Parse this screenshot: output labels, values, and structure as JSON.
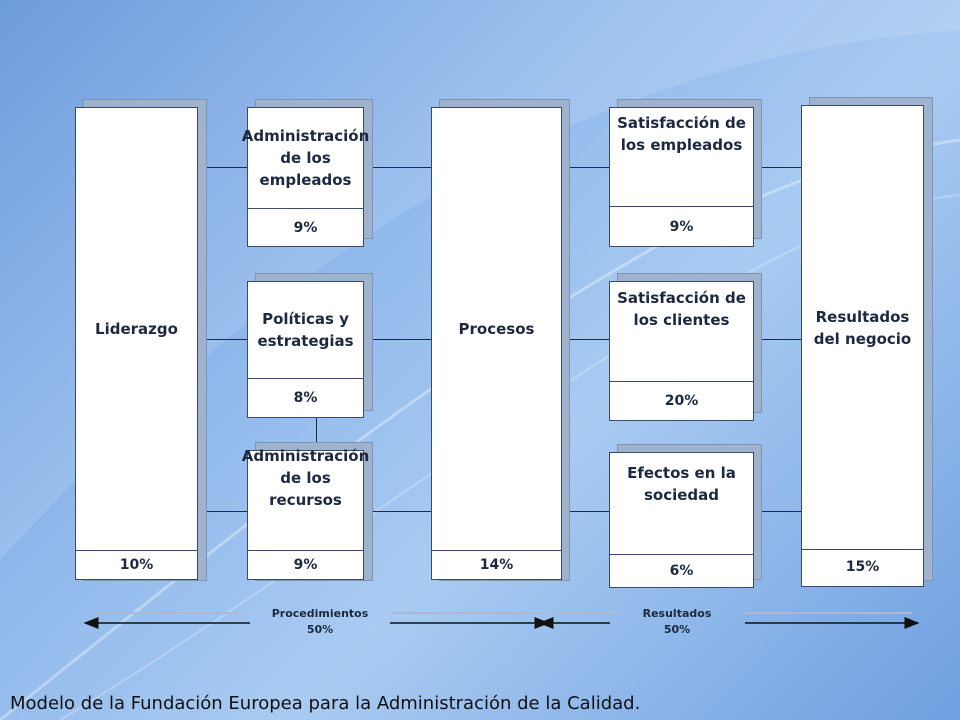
{
  "diagram": {
    "boxes": {
      "liderazgo": {
        "label": "Liderazgo",
        "pct": "10%"
      },
      "adm_empleados": {
        "label": "Administración de los empleados",
        "pct": "9%"
      },
      "politicas": {
        "label": "Políticas y estrategias",
        "pct": "8%"
      },
      "adm_recursos": {
        "label": "Administración de los recursos",
        "pct": "9%"
      },
      "procesos": {
        "label": "Procesos",
        "pct": "14%"
      },
      "sat_empleados": {
        "label": "Satisfacción de los empleados",
        "pct": "9%"
      },
      "sat_clientes": {
        "label": "Satisfacción de los clientes",
        "pct": "20%"
      },
      "efectos": {
        "label": "Efectos en la sociedad",
        "pct": "6%"
      },
      "resultados_negocio": {
        "label": "Resultados del negocio",
        "pct": "15%"
      }
    },
    "footer": {
      "procedimientos": {
        "label": "Procedimientos",
        "pct": "50%"
      },
      "resultados": {
        "label": "Resultados",
        "pct": "50%"
      }
    }
  },
  "caption": "Modelo de la Fundación Europea para la Administración de la Calidad."
}
